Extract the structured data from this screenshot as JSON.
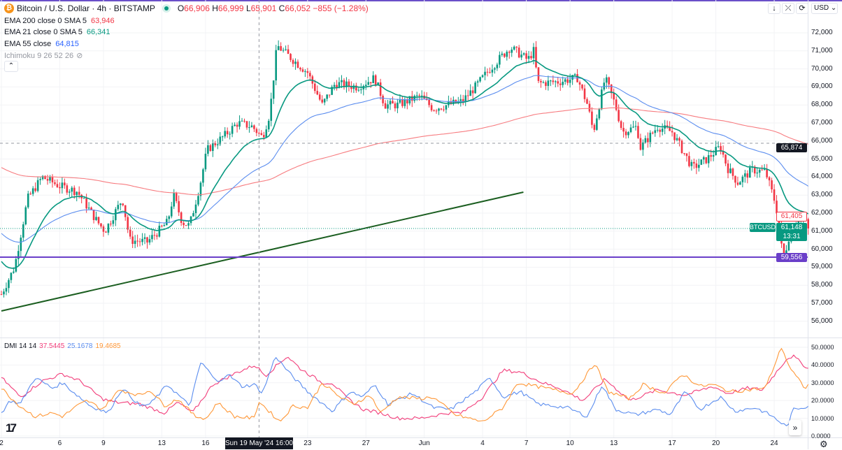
{
  "header": {
    "symbol": "Bitcoin / U.S. Dollar · 4h · BITSTAMP",
    "coin_glyph": "₿",
    "open": "66,906",
    "high": "66,999",
    "low": "65,901",
    "close": "66,052",
    "change": "−855 (−1.28%)",
    "o": "O",
    "h": "H",
    "l": "L",
    "c": "C"
  },
  "indicators": [
    {
      "label": "EMA 200 close 0 SMA 5",
      "value": "63,946",
      "color": "#f23645"
    },
    {
      "label": "EMA 21 close 0 SMA 5",
      "value": "66,341",
      "color": "#089981"
    },
    {
      "label": "EMA 55 close",
      "value": "64,815",
      "color": "#2962ff"
    },
    {
      "label": "Ichimoku 9 26 52 26",
      "value": "",
      "color": "#9598a1"
    }
  ],
  "dmi": {
    "label": "DMI 14 14",
    "adx": "37.5445",
    "plus": "25.1678",
    "minus": "19.4685"
  },
  "toolbar": {
    "down": "↓",
    "collapse": "⤫",
    "reset": "⟳",
    "currency": "USD ⌄",
    "collapse_legend": "⌃",
    "more": "»",
    "settings": "⚙",
    "logo": "17"
  },
  "price_axis": [
    "72,000",
    "71,000",
    "70,000",
    "69,000",
    "68,000",
    "67,000",
    "66,000",
    "65,000",
    "64,000",
    "63,000",
    "62,000",
    "61,000",
    "60,000",
    "59,000",
    "58,000",
    "57,000",
    "56,000"
  ],
  "dmi_axis": [
    "50.0000",
    "40.0000",
    "30.0000",
    "20.0000",
    "10.0000",
    "0.0000"
  ],
  "tags": {
    "crosshair": "65,874",
    "ema": "61,405",
    "symbol": "BTCUSD",
    "last": "61,148",
    "countdown": "13:31",
    "hline": "59,556"
  },
  "time_axis": {
    "labels": [
      "2",
      "6",
      "9",
      "13",
      "16",
      "23",
      "27",
      "Jun",
      "4",
      "7",
      "10",
      "13",
      "17",
      "20",
      "24"
    ],
    "crosshair": "Sun 19 May '24  16:00"
  },
  "chart_data": {
    "type": "candlestick",
    "timeframe": "4h",
    "x_unit": "days since May 2",
    "label_days": [
      0,
      4,
      7,
      11,
      14,
      21,
      25,
      29,
      33,
      36,
      39,
      42,
      46,
      49,
      53
    ],
    "ylim": [
      55500,
      72500
    ],
    "close_path": [
      [
        0,
        57500
      ],
      [
        0.9,
        59000
      ],
      [
        1.8,
        62800
      ],
      [
        2.8,
        64000
      ],
      [
        4,
        63500
      ],
      [
        5.2,
        63200
      ],
      [
        6.6,
        61500
      ],
      [
        7.1,
        61000
      ],
      [
        8.3,
        62800
      ],
      [
        8.8,
        60500
      ],
      [
        10,
        60400
      ],
      [
        11.4,
        61500
      ],
      [
        11.8,
        63000
      ],
      [
        12.4,
        61500
      ],
      [
        12.9,
        61300
      ],
      [
        13.6,
        63500
      ],
      [
        14.1,
        65500
      ],
      [
        15.3,
        66300
      ],
      [
        16.2,
        67000
      ],
      [
        17.2,
        66800
      ],
      [
        17.9,
        66200
      ],
      [
        18.4,
        67500
      ],
      [
        18.9,
        71300
      ],
      [
        20,
        70500
      ],
      [
        21,
        69800
      ],
      [
        22,
        68000
      ],
      [
        22.9,
        69200
      ],
      [
        24.4,
        69000
      ],
      [
        25.6,
        69500
      ],
      [
        26.3,
        68000
      ],
      [
        27.2,
        68000
      ],
      [
        28.7,
        68500
      ],
      [
        29.6,
        67800
      ],
      [
        31.6,
        68200
      ],
      [
        32.5,
        69000
      ],
      [
        33.5,
        70000
      ],
      [
        34.9,
        71200
      ],
      [
        36.1,
        70500
      ],
      [
        36.5,
        71000
      ],
      [
        36.8,
        69200
      ],
      [
        38.3,
        69300
      ],
      [
        39.5,
        69500
      ],
      [
        40.2,
        68000
      ],
      [
        40.6,
        66500
      ],
      [
        41.4,
        69500
      ],
      [
        42.1,
        68000
      ],
      [
        42.6,
        66500
      ],
      [
        43.6,
        66800
      ],
      [
        43.8,
        65600
      ],
      [
        45,
        66800
      ],
      [
        46,
        66500
      ],
      [
        46.7,
        65500
      ],
      [
        47.4,
        64500
      ],
      [
        48.4,
        65000
      ],
      [
        49.3,
        65700
      ],
      [
        49.8,
        64500
      ],
      [
        50.5,
        63700
      ],
      [
        51.5,
        64400
      ],
      [
        52.4,
        64300
      ],
      [
        53.1,
        62500
      ],
      [
        53.4,
        61000
      ],
      [
        53.6,
        59300
      ],
      [
        54.1,
        61000
      ],
      [
        54.6,
        61700
      ],
      [
        55.1,
        61600
      ],
      [
        55.4,
        61148
      ]
    ],
    "ema_seed": {
      "ema21": 59500,
      "ema55": 61000,
      "ema200": 64600
    },
    "trendline": [
      [
        0,
        56574
      ],
      [
        35.8,
        63163
      ]
    ],
    "hline": 59556,
    "crosshair": {
      "day": 17.67,
      "price": 65874
    },
    "dmi_series": [
      {
        "name": "ADX",
        "color": "#f23d7a",
        "points": [
          [
            0,
            33
          ],
          [
            1.3,
            22
          ],
          [
            2.8,
            31
          ],
          [
            4.2,
            35
          ],
          [
            5.4,
            31
          ],
          [
            6.9,
            21
          ],
          [
            7.8,
            19
          ],
          [
            9.5,
            18
          ],
          [
            11.2,
            13
          ],
          [
            12.1,
            19
          ],
          [
            13.1,
            13
          ],
          [
            14.5,
            29
          ],
          [
            16.2,
            36
          ],
          [
            17.4,
            40
          ],
          [
            18.1,
            34
          ],
          [
            19.6,
            45
          ],
          [
            20.5,
            38
          ],
          [
            22,
            30
          ],
          [
            22.7,
            30
          ],
          [
            23.6,
            22
          ],
          [
            24.8,
            15
          ],
          [
            26,
            13
          ],
          [
            27.2,
            10
          ],
          [
            28.7,
            10
          ],
          [
            30.6,
            13
          ],
          [
            31.6,
            13
          ],
          [
            33,
            22
          ],
          [
            34.4,
            37
          ],
          [
            35.6,
            36
          ],
          [
            37.1,
            30
          ],
          [
            38.3,
            27
          ],
          [
            39.9,
            20
          ],
          [
            41.4,
            32
          ],
          [
            43.1,
            20
          ],
          [
            45,
            26
          ],
          [
            46.9,
            23
          ],
          [
            48.8,
            28
          ],
          [
            49.8,
            24
          ],
          [
            51.2,
            27
          ],
          [
            52.2,
            26
          ],
          [
            53.9,
            44
          ],
          [
            54.3,
            45
          ],
          [
            55.4,
            37.5
          ]
        ]
      },
      {
        "name": "+DI",
        "color": "#5b8def",
        "points": [
          [
            0,
            13
          ],
          [
            0.6,
            20
          ],
          [
            1.3,
            18
          ],
          [
            2.3,
            33
          ],
          [
            3.5,
            27
          ],
          [
            4.2,
            30
          ],
          [
            4.9,
            25
          ],
          [
            6.1,
            17
          ],
          [
            7.3,
            13
          ],
          [
            8.3,
            27
          ],
          [
            9.5,
            17
          ],
          [
            10.2,
            18
          ],
          [
            11.4,
            29
          ],
          [
            12.9,
            17
          ],
          [
            13.7,
            42
          ],
          [
            14.8,
            30
          ],
          [
            15.5,
            35
          ],
          [
            16.5,
            28
          ],
          [
            17.4,
            29
          ],
          [
            17.9,
            24
          ],
          [
            18.8,
            45
          ],
          [
            19.8,
            35
          ],
          [
            21,
            25
          ],
          [
            22.7,
            14
          ],
          [
            23.9,
            25
          ],
          [
            24.8,
            22
          ],
          [
            25.6,
            29
          ],
          [
            26.5,
            18
          ],
          [
            28.2,
            24
          ],
          [
            29.6,
            16
          ],
          [
            30.8,
            15
          ],
          [
            32.5,
            25
          ],
          [
            33.5,
            33
          ],
          [
            34.4,
            22
          ],
          [
            35.6,
            25
          ],
          [
            36.8,
            18
          ],
          [
            38.8,
            16
          ],
          [
            40.2,
            11
          ],
          [
            41.2,
            29
          ],
          [
            42.1,
            15
          ],
          [
            43.5,
            12
          ],
          [
            45,
            15
          ],
          [
            45.9,
            12
          ],
          [
            46.9,
            25
          ],
          [
            47.9,
            15
          ],
          [
            49.3,
            22
          ],
          [
            50.3,
            14
          ],
          [
            51.7,
            16
          ],
          [
            52.7,
            12
          ],
          [
            53.9,
            5
          ],
          [
            54.3,
            15
          ],
          [
            55.4,
            17
          ]
        ]
      },
      {
        "name": "-DI",
        "color": "#ff9838",
        "points": [
          [
            0,
            27
          ],
          [
            1.1,
            18
          ],
          [
            2.3,
            11
          ],
          [
            3.5,
            13
          ],
          [
            4.2,
            11
          ],
          [
            5.2,
            17
          ],
          [
            5.9,
            20
          ],
          [
            6.9,
            15
          ],
          [
            8.1,
            26
          ],
          [
            9.5,
            23
          ],
          [
            10.2,
            26
          ],
          [
            11.2,
            17
          ],
          [
            12.1,
            21
          ],
          [
            13.3,
            11
          ],
          [
            14.1,
            10
          ],
          [
            14.8,
            19
          ],
          [
            16,
            11
          ],
          [
            17.4,
            10
          ],
          [
            17.6,
            20
          ],
          [
            19.1,
            8
          ],
          [
            20,
            17
          ],
          [
            21,
            16
          ],
          [
            22,
            30
          ],
          [
            23.2,
            22
          ],
          [
            24.1,
            18
          ],
          [
            25.3,
            23
          ],
          [
            26,
            13
          ],
          [
            27.2,
            22
          ],
          [
            28.7,
            21
          ],
          [
            29.6,
            22
          ],
          [
            31.1,
            12
          ],
          [
            33,
            8
          ],
          [
            34.4,
            16
          ],
          [
            35.4,
            30
          ],
          [
            37.3,
            27
          ],
          [
            39.2,
            24
          ],
          [
            40.7,
            41
          ],
          [
            41.6,
            25
          ],
          [
            43.1,
            21
          ],
          [
            44,
            29
          ],
          [
            45.5,
            24
          ],
          [
            46.7,
            35
          ],
          [
            47.9,
            28
          ],
          [
            48.8,
            29
          ],
          [
            50,
            25
          ],
          [
            51.2,
            26
          ],
          [
            52.4,
            27
          ],
          [
            53.5,
            50
          ],
          [
            54.1,
            38
          ],
          [
            55.1,
            27
          ],
          [
            55.4,
            29
          ]
        ]
      }
    ],
    "dmi_ylim": [
      0,
      50
    ]
  }
}
